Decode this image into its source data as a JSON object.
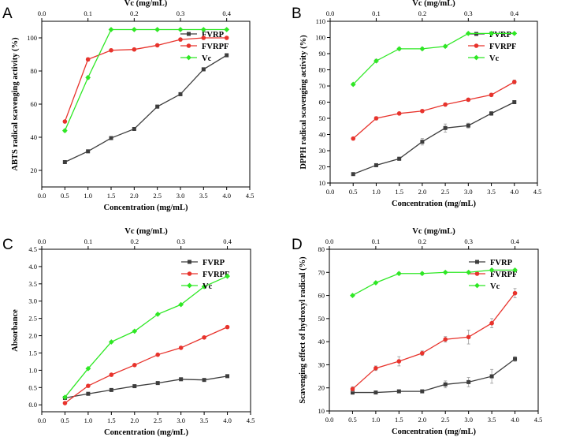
{
  "colors": {
    "FVRP": "#3d3d3d",
    "FVRPF": "#e8332c",
    "Vc": "#2ee824",
    "axis": "#000000"
  },
  "chart_data": [
    {
      "panel": "A",
      "type": "line",
      "xlabel": "Concentration (mg/mL)",
      "ylabel": "ABTS radical scavenging activity (%)",
      "top_xlabel": "Vc (mg/mL)",
      "xlim": [
        0,
        4.5
      ],
      "ylim": [
        10,
        110
      ],
      "xticks": [
        "0.0",
        "0.5",
        "1.0",
        "1.5",
        "2.0",
        "2.5",
        "3.0",
        "3.5",
        "4.0",
        "4.5"
      ],
      "yticks": [
        20,
        40,
        60,
        80,
        100
      ],
      "top_xticks": [
        "0.0",
        "0.1",
        "0.2",
        "0.3",
        "0.4"
      ],
      "x": [
        0.5,
        1.0,
        1.5,
        2.0,
        2.5,
        3.0,
        3.5,
        4.0
      ],
      "legend_position": "top-right",
      "series": [
        {
          "name": "FVRP",
          "marker": "square",
          "values": [
            25,
            31.5,
            39.5,
            45,
            58.5,
            66,
            81,
            89.5
          ],
          "errors": [
            0.8,
            0.8,
            0.8,
            1,
            1,
            1,
            1,
            1
          ]
        },
        {
          "name": "FVRPF",
          "marker": "circle",
          "values": [
            49.5,
            87,
            92.5,
            93,
            95.5,
            99,
            100,
            100
          ],
          "errors": [
            0.8,
            1,
            0.8,
            0.8,
            0.8,
            0.8,
            0.8,
            0.8
          ]
        },
        {
          "name": "Vc",
          "marker": "diamond",
          "values": [
            44,
            76,
            105,
            105,
            105,
            105,
            105,
            105
          ],
          "errors": [
            0.8,
            1,
            0.5,
            0.5,
            0.5,
            0.5,
            0.5,
            0.5
          ]
        }
      ]
    },
    {
      "panel": "B",
      "type": "line",
      "xlabel": "Concentration (mg/mL)",
      "ylabel": "DPPH radical scavenging activity (%)",
      "top_xlabel": "Vc (mg/mL)",
      "xlim": [
        0,
        4.5
      ],
      "ylim": [
        10,
        110
      ],
      "xticks": [
        "0.0",
        "0.5",
        "1.0",
        "1.5",
        "2.0",
        "2.5",
        "3.0",
        "3.5",
        "4.0",
        "4.5"
      ],
      "yticks": [
        10,
        20,
        30,
        40,
        50,
        60,
        70,
        80,
        90,
        100,
        110
      ],
      "top_xticks": [
        "0.0",
        "0.1",
        "0.2",
        "0.3",
        "0.4"
      ],
      "x": [
        0.5,
        1.0,
        1.5,
        2.0,
        2.5,
        3.0,
        3.5,
        4.0
      ],
      "legend_position": "top-right",
      "series": [
        {
          "name": "FVRP",
          "marker": "square",
          "values": [
            15.5,
            21,
            25,
            35.5,
            44,
            45.5,
            53,
            60
          ],
          "errors": [
            0.8,
            0.8,
            1,
            2,
            2.5,
            1.5,
            1.2,
            1
          ]
        },
        {
          "name": "FVRPF",
          "marker": "circle",
          "values": [
            37.5,
            50,
            53,
            54.5,
            58.5,
            61.5,
            64.5,
            72.5
          ],
          "errors": [
            0.8,
            1,
            0.8,
            0.8,
            1,
            1,
            1,
            1.2
          ]
        },
        {
          "name": "Vc",
          "marker": "diamond",
          "values": [
            71,
            85.5,
            93,
            93,
            94.5,
            102.5,
            102.5,
            102.5
          ],
          "errors": [
            0.8,
            1,
            0.8,
            0.8,
            0.8,
            0.5,
            0.5,
            0.5
          ]
        }
      ]
    },
    {
      "panel": "C",
      "type": "line",
      "xlabel": "Concentration (mg/mL)",
      "ylabel": "Absorbance",
      "top_xlabel": "Vc (mg/mL)",
      "xlim": [
        0,
        4.5
      ],
      "ylim": [
        -0.2,
        4.5
      ],
      "xticks": [
        "0.0",
        "0.5",
        "1.0",
        "1.5",
        "2.0",
        "2.5",
        "3.0",
        "3.5",
        "4.0",
        "4.5"
      ],
      "yticks": [
        "0.0",
        "0.5",
        "1.0",
        "1.5",
        "2.0",
        "2.5",
        "3.0",
        "3.5",
        "4.0",
        "4.5"
      ],
      "top_xticks": [
        "0.0",
        "0.1",
        "0.2",
        "0.3",
        "0.4"
      ],
      "x": [
        0.5,
        1.0,
        1.5,
        2.0,
        2.5,
        3.0,
        3.5,
        4.0
      ],
      "legend_position": "top-right",
      "series": [
        {
          "name": "FVRP",
          "marker": "square",
          "values": [
            0.2,
            0.32,
            0.43,
            0.54,
            0.63,
            0.74,
            0.72,
            0.83
          ],
          "errors": [
            0.02,
            0.02,
            0.02,
            0.02,
            0.02,
            0.02,
            0.02,
            0.02
          ]
        },
        {
          "name": "FVRPF",
          "marker": "circle",
          "values": [
            0.05,
            0.55,
            0.87,
            1.15,
            1.45,
            1.65,
            1.95,
            2.25
          ],
          "errors": [
            0.02,
            0.02,
            0.02,
            0.02,
            0.02,
            0.02,
            0.02,
            0.02
          ]
        },
        {
          "name": "Vc",
          "marker": "diamond",
          "values": [
            0.22,
            1.05,
            1.82,
            2.13,
            2.62,
            2.9,
            3.42,
            3.72
          ],
          "errors": [
            0.02,
            0.02,
            0.02,
            0.02,
            0.02,
            0.02,
            0.02,
            0.02
          ]
        }
      ]
    },
    {
      "panel": "D",
      "type": "line",
      "xlabel": "Concentration (mg/mL)",
      "ylabel": "Scavenging effect of hydroxyl radical (%)",
      "top_xlabel": "Vc (mg/mL)",
      "xlim": [
        0,
        4.5
      ],
      "ylim": [
        10,
        80
      ],
      "xticks": [
        "0.0",
        "0.5",
        "1.0",
        "1.5",
        "2.0",
        "2.5",
        "3.0",
        "3.5",
        "4.0",
        "4.5"
      ],
      "yticks": [
        10,
        20,
        30,
        40,
        50,
        60,
        70,
        80
      ],
      "top_xticks": [
        "0.0",
        "0.1",
        "0.2",
        "0.3",
        "0.4"
      ],
      "x": [
        0.5,
        1.0,
        1.5,
        2.0,
        2.5,
        3.0,
        3.5,
        4.0
      ],
      "legend_position": "top-right",
      "series": [
        {
          "name": "FVRP",
          "marker": "square",
          "values": [
            18,
            18,
            18.5,
            18.5,
            21.5,
            22.5,
            25,
            32.5
          ],
          "errors": [
            0.8,
            0.5,
            0.5,
            0.5,
            1.5,
            2,
            3,
            1
          ]
        },
        {
          "name": "FVRPF",
          "marker": "circle",
          "values": [
            19.5,
            28.5,
            31.5,
            35,
            41,
            42,
            48,
            61
          ],
          "errors": [
            1,
            1,
            2,
            1,
            1.2,
            3,
            2,
            2
          ]
        },
        {
          "name": "Vc",
          "marker": "diamond",
          "values": [
            60,
            65.5,
            69.5,
            69.5,
            70,
            70,
            71,
            71
          ],
          "errors": [
            0.5,
            0.5,
            0.5,
            0.5,
            0.5,
            0.5,
            0.5,
            0.5
          ]
        }
      ]
    }
  ]
}
